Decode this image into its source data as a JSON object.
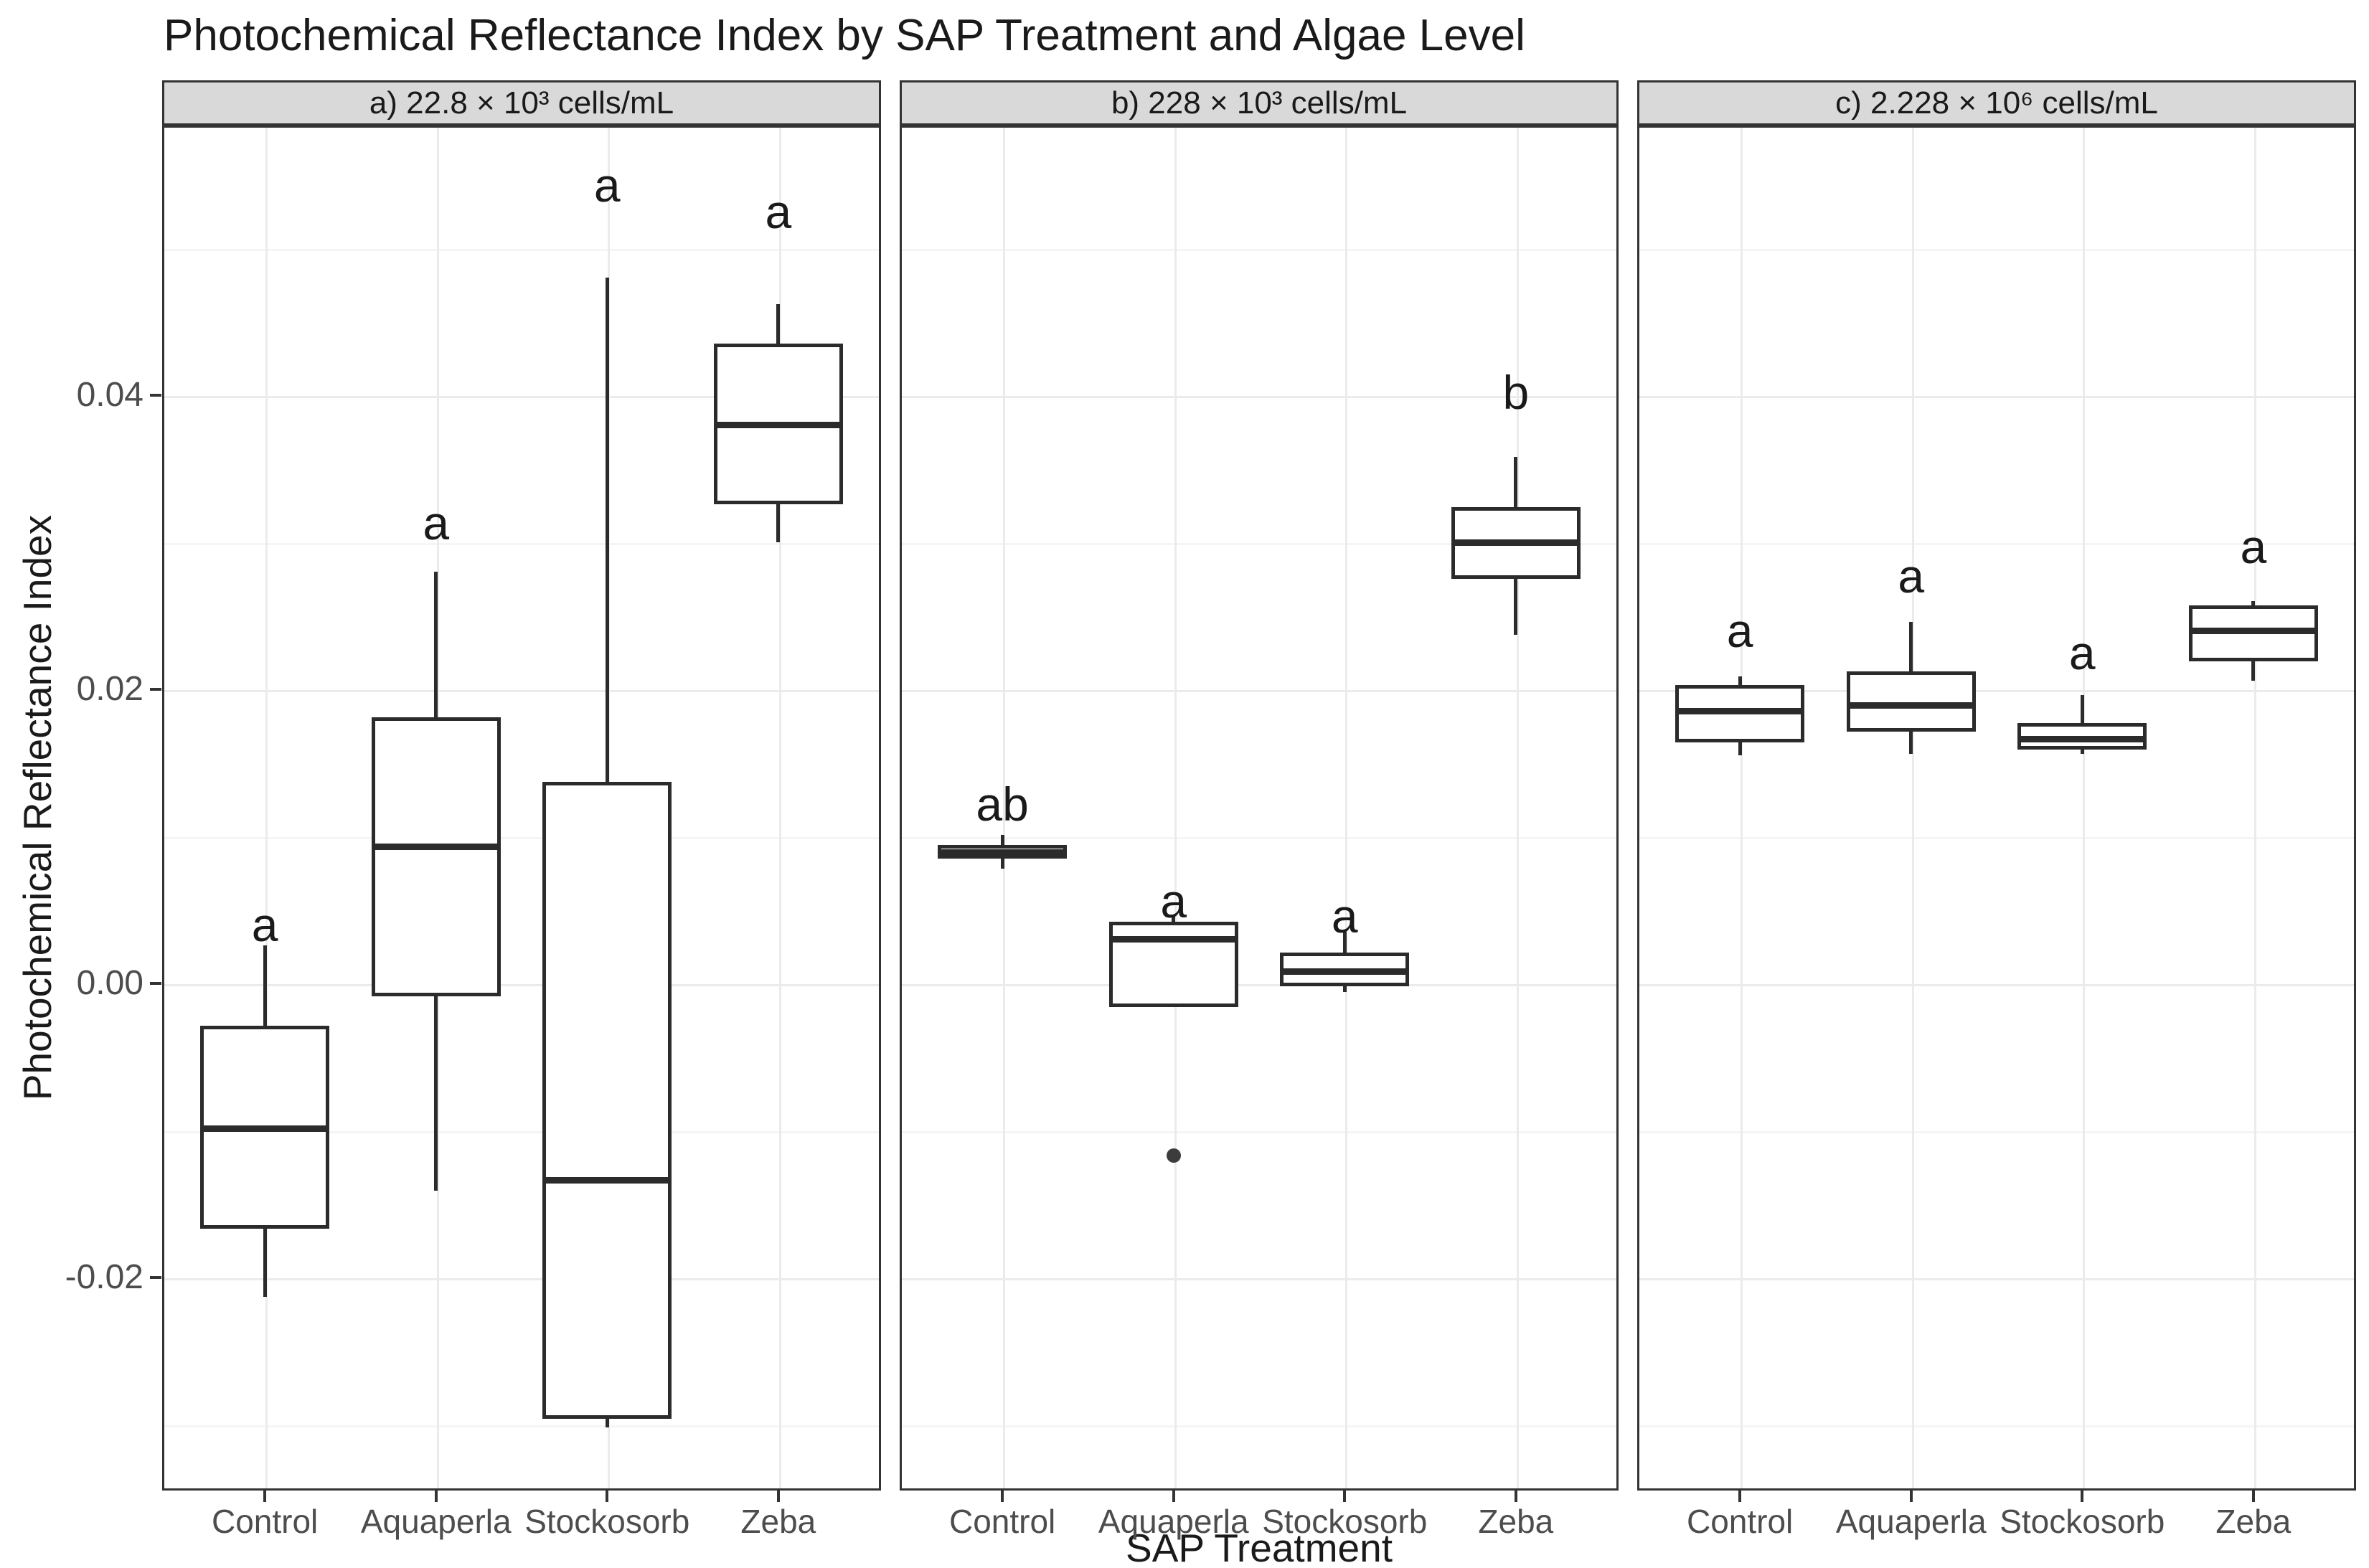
{
  "title": "Photochemical Reflectance Index by SAP Treatment and Algae Level",
  "x_axis": {
    "title": "SAP Treatment",
    "categories": [
      "Control",
      "Aquaperla",
      "Stockosorb",
      "Zeba"
    ]
  },
  "y_axis": {
    "title": "Photochemical Reflectance Index",
    "tick_labels": [
      "0.04",
      "0.02",
      "0.00",
      "-0.02"
    ],
    "tick_values": [
      0.04,
      0.02,
      0.0,
      -0.02
    ],
    "minor_values": [
      0.05,
      0.03,
      0.01,
      -0.01,
      -0.03
    ]
  },
  "chart_data": {
    "type": "boxplot",
    "title": "Photochemical Reflectance Index by SAP Treatment and Algae Level",
    "xlabel": "SAP Treatment",
    "ylabel": "Photochemical Reflectance Index",
    "ylim": [
      -0.0345,
      0.0585
    ],
    "grid": true,
    "categories": [
      "Control",
      "Aquaperla",
      "Stockosorb",
      "Zeba"
    ],
    "facets": [
      {
        "id": "a",
        "label": "a) 22.8 × 10³ cells/mL",
        "boxes": [
          {
            "treatment": "Control",
            "whisker_low": -0.0213,
            "q1": -0.0167,
            "median": -0.0099,
            "q3": -0.0029,
            "whisker_high": 0.0026,
            "outliers": [],
            "letter": "a",
            "letter_y": 0.004
          },
          {
            "treatment": "Aquaperla",
            "whisker_low": -0.0141,
            "q1": -0.0009,
            "median": 0.0093,
            "q3": 0.0181,
            "whisker_high": 0.028,
            "outliers": [],
            "letter": "a",
            "letter_y": 0.0313
          },
          {
            "treatment": "Stockosorb",
            "whisker_low": -0.0302,
            "q1": -0.0296,
            "median": -0.0134,
            "q3": 0.0137,
            "whisker_high": 0.048,
            "outliers": [],
            "letter": "a",
            "letter_y": 0.0543
          },
          {
            "treatment": "Zeba",
            "whisker_low": 0.03,
            "q1": 0.0326,
            "median": 0.038,
            "q3": 0.0435,
            "whisker_high": 0.0462,
            "outliers": [],
            "letter": "a",
            "letter_y": 0.0525
          }
        ]
      },
      {
        "id": "b",
        "label": "b) 228 × 10³ cells/mL",
        "boxes": [
          {
            "treatment": "Control",
            "whisker_low": 0.0078,
            "q1": 0.0085,
            "median": 0.0089,
            "q3": 0.0094,
            "whisker_high": 0.0101,
            "outliers": [],
            "letter": "ab",
            "letter_y": 0.0122
          },
          {
            "treatment": "Aquaperla",
            "whisker_low": -0.0016,
            "q1": -0.0016,
            "median": 0.003,
            "q3": 0.0042,
            "whisker_high": 0.0046,
            "outliers": [
              -0.0117
            ],
            "letter": "a",
            "letter_y": 0.0056
          },
          {
            "treatment": "Stockosorb",
            "whisker_low": -0.0006,
            "q1": -0.0002,
            "median": 0.0008,
            "q3": 0.0021,
            "whisker_high": 0.0035,
            "outliers": [],
            "letter": "a",
            "letter_y": 0.0046
          },
          {
            "treatment": "Zeba",
            "whisker_low": 0.0237,
            "q1": 0.0275,
            "median": 0.03,
            "q3": 0.0324,
            "whisker_high": 0.0358,
            "outliers": [],
            "letter": "b",
            "letter_y": 0.0402
          }
        ]
      },
      {
        "id": "c",
        "label": "c) 2.228 × 10⁶ cells/mL",
        "boxes": [
          {
            "treatment": "Control",
            "whisker_low": 0.0155,
            "q1": 0.0164,
            "median": 0.0185,
            "q3": 0.0203,
            "whisker_high": 0.0209,
            "outliers": [],
            "letter": "a",
            "letter_y": 0.024
          },
          {
            "treatment": "Aquaperla",
            "whisker_low": 0.0156,
            "q1": 0.0171,
            "median": 0.0189,
            "q3": 0.0212,
            "whisker_high": 0.0246,
            "outliers": [],
            "letter": "a",
            "letter_y": 0.0277
          },
          {
            "treatment": "Stockosorb",
            "whisker_low": 0.0156,
            "q1": 0.0159,
            "median": 0.0166,
            "q3": 0.0177,
            "whisker_high": 0.0196,
            "outliers": [],
            "letter": "a",
            "letter_y": 0.0225
          },
          {
            "treatment": "Zeba",
            "whisker_low": 0.0206,
            "q1": 0.0219,
            "median": 0.024,
            "q3": 0.0257,
            "whisker_high": 0.026,
            "outliers": [],
            "letter": "a",
            "letter_y": 0.0297
          }
        ]
      }
    ]
  },
  "colors": {
    "box_stroke": "#2b2b2b",
    "grid_major": "#ebebeb",
    "grid_minor": "#f5f5f5",
    "strip_fill": "#d9d9d9",
    "panel_border": "#333333",
    "tick_label": "#4d4d4d",
    "text": "#1a1a1a",
    "outlier": "#3c3c3c"
  }
}
